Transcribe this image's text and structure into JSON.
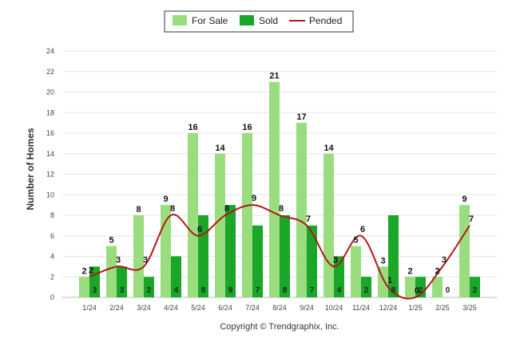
{
  "chart_data": {
    "type": "bar",
    "ylabel": "Number of Homes",
    "ylim": [
      0,
      24
    ],
    "yticks": [
      0,
      2,
      4,
      6,
      8,
      10,
      12,
      14,
      16,
      18,
      20,
      22,
      24
    ],
    "grid": true,
    "legend_position": "top-center",
    "categories": [
      "1/24",
      "2/24",
      "3/24",
      "4/24",
      "5/24",
      "6/24",
      "7/24",
      "8/24",
      "9/24",
      "10/24",
      "11/24",
      "12/24",
      "1/25",
      "2/25",
      "3/25"
    ],
    "series": [
      {
        "name": "For Sale",
        "kind": "bar",
        "color": "#99dd7f",
        "values": [
          2,
          5,
          8,
          9,
          16,
          14,
          16,
          21,
          17,
          14,
          5,
          3,
          2,
          2,
          9
        ]
      },
      {
        "name": "Sold",
        "kind": "bar",
        "color": "#19a629",
        "values": [
          3,
          3,
          2,
          4,
          8,
          9,
          7,
          8,
          7,
          4,
          2,
          8,
          2,
          0,
          2
        ]
      },
      {
        "name": "Pended",
        "kind": "line",
        "color": "#b01818",
        "values": [
          2,
          3,
          3,
          8,
          6,
          8,
          9,
          8,
          7,
          3,
          6,
          1,
          0,
          3,
          7
        ]
      }
    ],
    "credit": "Copyright © Trendgraphix, Inc."
  }
}
